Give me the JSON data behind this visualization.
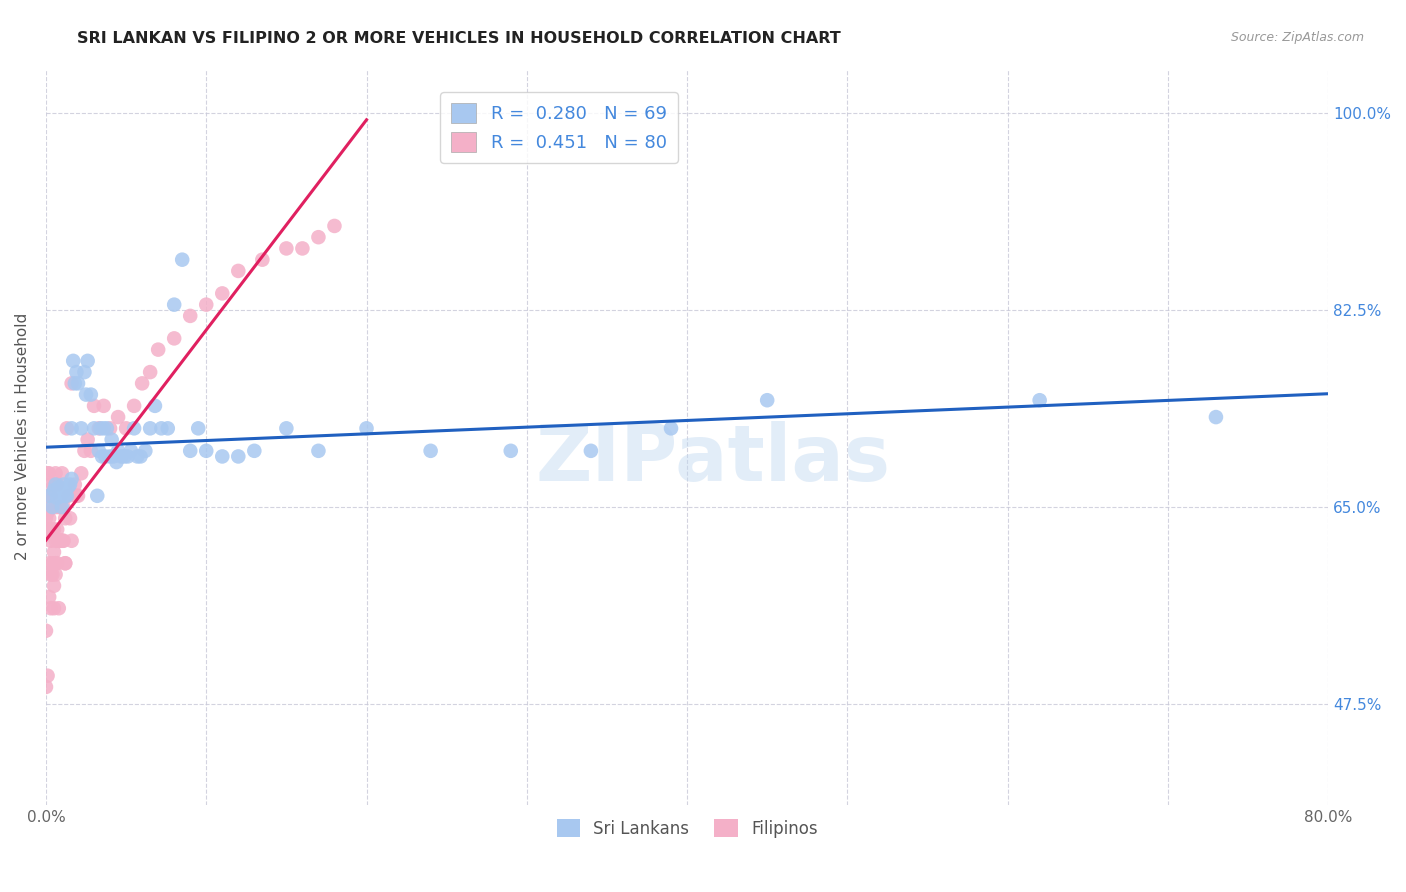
{
  "title": "SRI LANKAN VS FILIPINO 2 OR MORE VEHICLES IN HOUSEHOLD CORRELATION CHART",
  "source": "Source: ZipAtlas.com",
  "ylabel": "2 or more Vehicles in Household",
  "ytick_labels": [
    "47.5%",
    "65.0%",
    "82.5%",
    "100.0%"
  ],
  "ytick_values": [
    0.475,
    0.65,
    0.825,
    1.0
  ],
  "xlim": [
    0.0,
    0.8
  ],
  "ylim": [
    0.385,
    1.04
  ],
  "sri_lanka_color": "#a8c8f0",
  "filipino_color": "#f4b0c8",
  "sri_lanka_line_color": "#2060c0",
  "filipino_line_color": "#e02060",
  "watermark": "ZIPatlas",
  "sri_lankans_x": [
    0.002,
    0.004,
    0.005,
    0.006,
    0.007,
    0.008,
    0.009,
    0.01,
    0.01,
    0.011,
    0.012,
    0.012,
    0.013,
    0.014,
    0.015,
    0.016,
    0.016,
    0.017,
    0.018,
    0.019,
    0.02,
    0.022,
    0.024,
    0.025,
    0.026,
    0.028,
    0.03,
    0.032,
    0.033,
    0.034,
    0.035,
    0.036,
    0.037,
    0.038,
    0.04,
    0.041,
    0.042,
    0.044,
    0.045,
    0.047,
    0.049,
    0.051,
    0.053,
    0.055,
    0.057,
    0.059,
    0.062,
    0.065,
    0.068,
    0.072,
    0.076,
    0.08,
    0.085,
    0.09,
    0.095,
    0.1,
    0.11,
    0.12,
    0.13,
    0.15,
    0.17,
    0.2,
    0.24,
    0.29,
    0.34,
    0.39,
    0.45,
    0.62,
    0.73
  ],
  "sri_lankans_y": [
    0.66,
    0.65,
    0.665,
    0.67,
    0.658,
    0.668,
    0.66,
    0.65,
    0.662,
    0.67,
    0.66,
    0.665,
    0.66,
    0.668,
    0.67,
    0.675,
    0.72,
    0.78,
    0.76,
    0.77,
    0.76,
    0.72,
    0.77,
    0.75,
    0.78,
    0.75,
    0.72,
    0.66,
    0.7,
    0.72,
    0.695,
    0.72,
    0.695,
    0.72,
    0.695,
    0.71,
    0.695,
    0.69,
    0.7,
    0.695,
    0.695,
    0.695,
    0.7,
    0.72,
    0.695,
    0.695,
    0.7,
    0.72,
    0.74,
    0.72,
    0.72,
    0.83,
    0.87,
    0.7,
    0.72,
    0.7,
    0.695,
    0.695,
    0.7,
    0.72,
    0.7,
    0.72,
    0.7,
    0.7,
    0.7,
    0.72,
    0.745,
    0.745,
    0.73
  ],
  "filipinos_x": [
    0.0,
    0.0,
    0.001,
    0.001,
    0.001,
    0.001,
    0.002,
    0.002,
    0.002,
    0.003,
    0.003,
    0.003,
    0.004,
    0.004,
    0.004,
    0.005,
    0.005,
    0.005,
    0.005,
    0.006,
    0.006,
    0.006,
    0.006,
    0.007,
    0.007,
    0.007,
    0.008,
    0.008,
    0.009,
    0.009,
    0.01,
    0.01,
    0.011,
    0.011,
    0.012,
    0.012,
    0.013,
    0.014,
    0.015,
    0.016,
    0.016,
    0.018,
    0.019,
    0.02,
    0.022,
    0.024,
    0.026,
    0.028,
    0.03,
    0.033,
    0.036,
    0.04,
    0.045,
    0.05,
    0.055,
    0.06,
    0.065,
    0.07,
    0.08,
    0.09,
    0.1,
    0.11,
    0.12,
    0.135,
    0.15,
    0.16,
    0.17,
    0.18,
    0.0,
    0.0,
    0.001,
    0.002,
    0.003,
    0.003,
    0.004,
    0.005,
    0.006,
    0.008,
    0.01,
    0.012
  ],
  "filipinos_y": [
    0.625,
    0.64,
    0.63,
    0.645,
    0.66,
    0.68,
    0.6,
    0.64,
    0.68,
    0.62,
    0.65,
    0.66,
    0.6,
    0.63,
    0.67,
    0.58,
    0.61,
    0.63,
    0.67,
    0.6,
    0.62,
    0.65,
    0.68,
    0.6,
    0.63,
    0.67,
    0.62,
    0.65,
    0.62,
    0.65,
    0.62,
    0.68,
    0.62,
    0.65,
    0.6,
    0.64,
    0.72,
    0.66,
    0.64,
    0.62,
    0.76,
    0.67,
    0.66,
    0.66,
    0.68,
    0.7,
    0.71,
    0.7,
    0.74,
    0.72,
    0.74,
    0.72,
    0.73,
    0.72,
    0.74,
    0.76,
    0.77,
    0.79,
    0.8,
    0.82,
    0.83,
    0.84,
    0.86,
    0.87,
    0.88,
    0.88,
    0.89,
    0.9,
    0.54,
    0.49,
    0.5,
    0.57,
    0.56,
    0.59,
    0.59,
    0.56,
    0.59,
    0.56,
    0.62,
    0.6
  ],
  "background_color": "#ffffff",
  "grid_color": "#c8c8d8"
}
